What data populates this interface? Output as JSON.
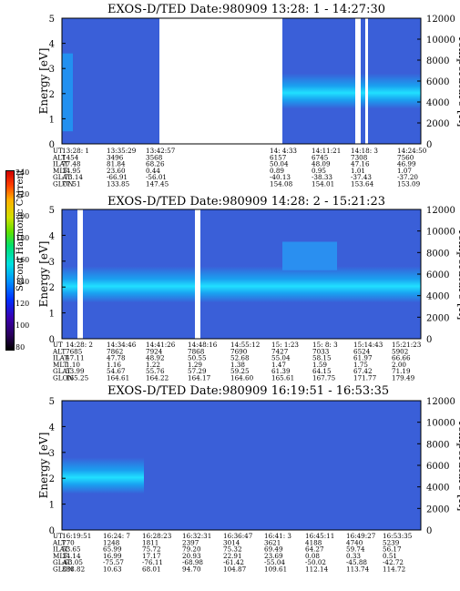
{
  "colorbar": {
    "label": "Second Harmonic Current",
    "ticks": [
      "240",
      "220",
      "200",
      "180",
      "160",
      "140",
      "120",
      "100",
      "80"
    ]
  },
  "chart_data": [
    {
      "type": "heatmap",
      "title": "EXOS-D/TED   Date:980909  13:28: 1 - 14:27:30",
      "ylabel": "Energy [eV]",
      "y2label": "Temperature [K]",
      "ylim": [
        0,
        5
      ],
      "y2lim": [
        0,
        12000
      ],
      "yticks": [
        "0",
        "1",
        "2",
        "3",
        "4",
        "5"
      ],
      "y2ticks": [
        "0",
        "2000",
        "4000",
        "6000",
        "8000",
        "10000",
        "12000"
      ],
      "table": {
        "rows": [
          "UT",
          "ALT",
          "ILAT",
          "MLT",
          "GLAT",
          "GLON"
        ],
        "columns": [
          [
            "13:28: 1",
            "1454",
            "77.48",
            "14.95",
            "-73.14",
            "77.51"
          ],
          [
            "13:35:29",
            "3496",
            "81.84",
            "23.60",
            "-66.91",
            "133.85"
          ],
          [
            "13:42:57",
            "3568",
            "68.26",
            "0.44",
            "-56.01",
            "147.45"
          ],
          [
            "14: 4:33",
            "6157",
            "50.04",
            "0.89",
            "-40.13",
            "154.08"
          ],
          [
            "14:11:21",
            "6745",
            "48.09",
            "0.95",
            "-38.33",
            "154.01"
          ],
          [
            "14:18: 3",
            "7308",
            "47.16",
            "1.01",
            "-37.43",
            "153.64"
          ],
          [
            "14:24:50",
            "7560",
            "46.99",
            "1.07",
            "-37.20",
            "153.09"
          ]
        ]
      }
    },
    {
      "type": "heatmap",
      "title": "EXOS-D/TED   Date:980909  14:28: 2 - 15:21:23",
      "ylabel": "Energy [eV]",
      "y2label": "Temperature [K]",
      "ylim": [
        0,
        5
      ],
      "y2lim": [
        0,
        12000
      ],
      "yticks": [
        "0",
        "1",
        "2",
        "3",
        "4",
        "5"
      ],
      "y2ticks": [
        "0",
        "2000",
        "4000",
        "6000",
        "8000",
        "10000",
        "12000"
      ],
      "table": {
        "rows": [
          "UT",
          "ALT",
          "ILAT",
          "MLT",
          "GLAT",
          "GLON"
        ],
        "columns": [
          [
            "14:28: 2",
            "7685",
            "47.11",
            "1.10",
            "53.99",
            "165.25"
          ],
          [
            "14:34:46",
            "7862",
            "47.78",
            "1.16",
            "54.67",
            "164.61"
          ],
          [
            "14:41:26",
            "7924",
            "48.92",
            "1.22",
            "55.76",
            "164.22"
          ],
          [
            "14:48:16",
            "7868",
            "50.55",
            "1.29",
            "57.29",
            "164.17"
          ],
          [
            "14:55:12",
            "7690",
            "52.68",
            "1.38",
            "59.25",
            "164.60"
          ],
          [
            "15: 1:23",
            "7427",
            "55.04",
            "1.47",
            "61.39",
            "165.61"
          ],
          [
            "15: 8: 3",
            "7033",
            "58.15",
            "1.59",
            "64.15",
            "167.75"
          ],
          [
            "15:14:43",
            "6524",
            "61.97",
            "1.75",
            "67.42",
            "171.77"
          ],
          [
            "15:21:23",
            "5902",
            "66.66",
            "2.00",
            "71.19",
            "179.49"
          ]
        ]
      }
    },
    {
      "type": "heatmap",
      "title": "EXOS-D/TED   Date:980909  16:19:51 - 16:53:35",
      "ylabel": "Energy [eV]",
      "y2label": "Temperature [K]",
      "ylim": [
        0,
        5
      ],
      "y2lim": [
        0,
        12000
      ],
      "yticks": [
        "0",
        "1",
        "2",
        "3",
        "4",
        "5"
      ],
      "y2ticks": [
        "0",
        "2000",
        "4000",
        "6000",
        "8000",
        "10000",
        "12000"
      ],
      "table": {
        "rows": [
          "UT",
          "ALT",
          "ILAT",
          "MLT",
          "GLAT",
          "GLON"
        ],
        "columns": [
          [
            "16:19:51",
            "770",
            "53.65",
            "14.14",
            "-63.05",
            "338.82"
          ],
          [
            "16:24: 7",
            "1248",
            "65.99",
            "16.99",
            "-75.57",
            "10.63"
          ],
          [
            "16:28:23",
            "1811",
            "75.72",
            "17.17",
            "-76.11",
            "68.01"
          ],
          [
            "16:32:31",
            "2397",
            "79.20",
            "20.93",
            "-68.98",
            "94.70"
          ],
          [
            "16:36:47",
            "3014",
            "75.32",
            "22.91",
            "-61.42",
            "104.87"
          ],
          [
            "16:41: 3",
            "3621",
            "69.49",
            "23.69",
            "-55.04",
            "109.61"
          ],
          [
            "16:45:11",
            "4188",
            "64.27",
            "0.08",
            "-50.02",
            "112.14"
          ],
          [
            "16:49:27",
            "4740",
            "59.74",
            "0.33",
            "-45.88",
            "113.74"
          ],
          [
            "16:53:35",
            "5239",
            "56.17",
            "0.51",
            "-42.72",
            "114.72"
          ]
        ]
      }
    }
  ]
}
